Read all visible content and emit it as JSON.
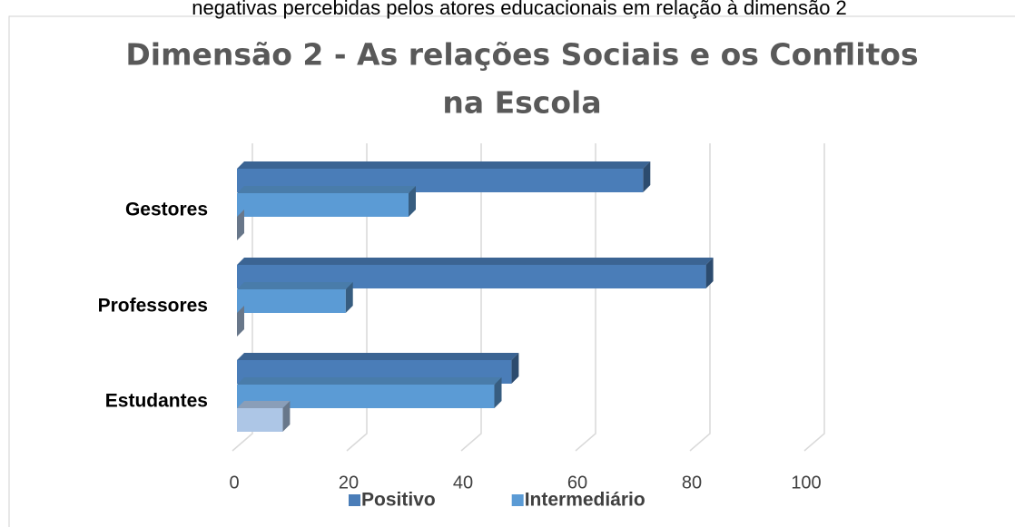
{
  "caption": "negativas percebidas pelos atores educacionais em relação à dimensão 2",
  "chart_data": {
    "type": "bar3d_horizontal",
    "title": [
      "Dimensão 2 - As relações Sociais e os Conflitos",
      "na Escola"
    ],
    "categories": [
      "Gestores",
      "Professores",
      "Estudantes"
    ],
    "series": [
      {
        "name": "Positivo",
        "color": "#4a7db8",
        "values": [
          71,
          82,
          48
        ]
      },
      {
        "name": "Intermediário",
        "color": "#5b9bd5",
        "values": [
          30,
          19,
          45
        ]
      },
      {
        "color": "#adc6e6",
        "values": [
          0,
          0,
          8
        ]
      }
    ],
    "xlim": [
      0,
      100
    ],
    "xticks": [
      0,
      20,
      40,
      60,
      80,
      100
    ],
    "grid": true
  }
}
